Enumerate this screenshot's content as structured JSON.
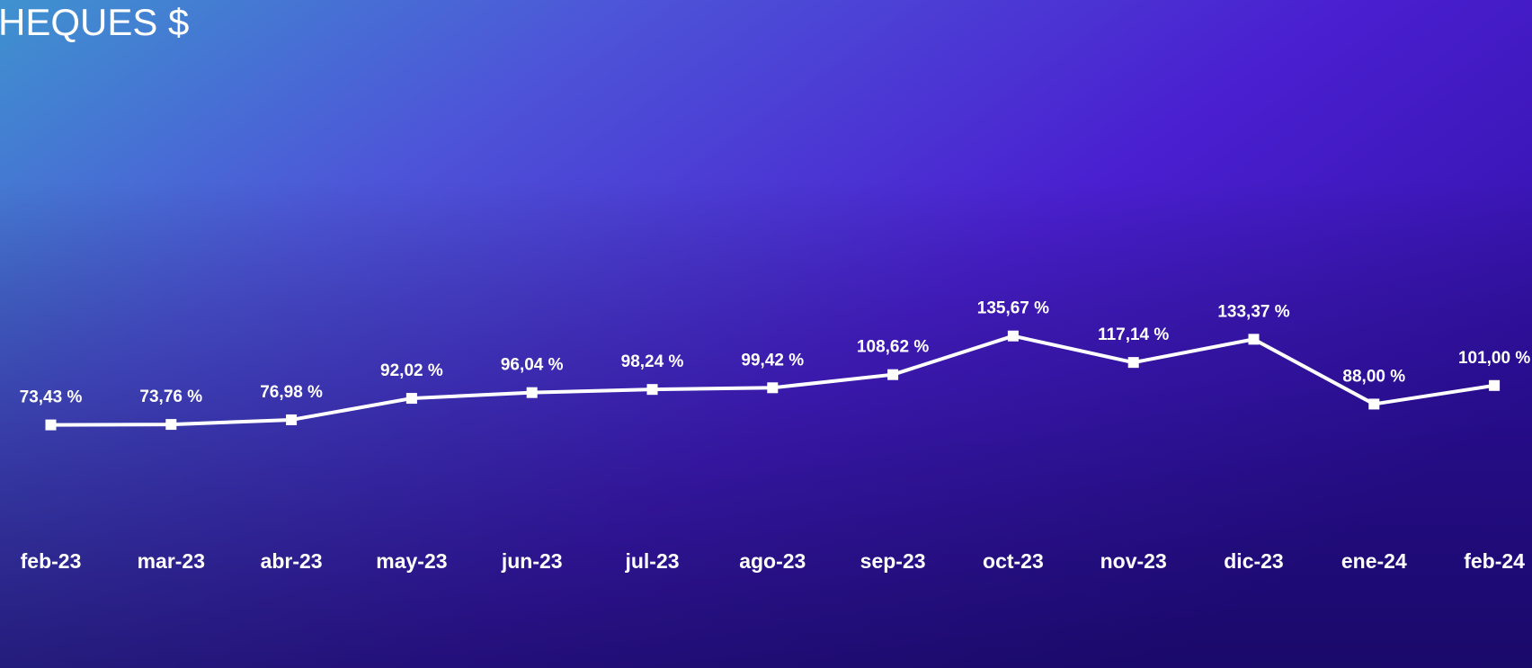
{
  "chart_data": {
    "type": "line",
    "title": "HEQUES $",
    "categories": [
      "feb-23",
      "mar-23",
      "abr-23",
      "may-23",
      "jun-23",
      "jul-23",
      "ago-23",
      "sep-23",
      "oct-23",
      "nov-23",
      "dic-23",
      "ene-24",
      "feb-24"
    ],
    "values": [
      73.43,
      73.76,
      76.98,
      92.02,
      96.04,
      98.24,
      99.42,
      108.62,
      135.67,
      117.14,
      133.37,
      88.0,
      101.0
    ],
    "value_labels": [
      "73,43 %",
      "73,76 %",
      "76,98 %",
      "92,02 %",
      "96,04 %",
      "98,24 %",
      "99,42 %",
      "108,62 %",
      "135,67 %",
      "117,14 %",
      "133,37 %",
      "88,00 %",
      "101,00 %"
    ],
    "color": "#ffffff"
  }
}
